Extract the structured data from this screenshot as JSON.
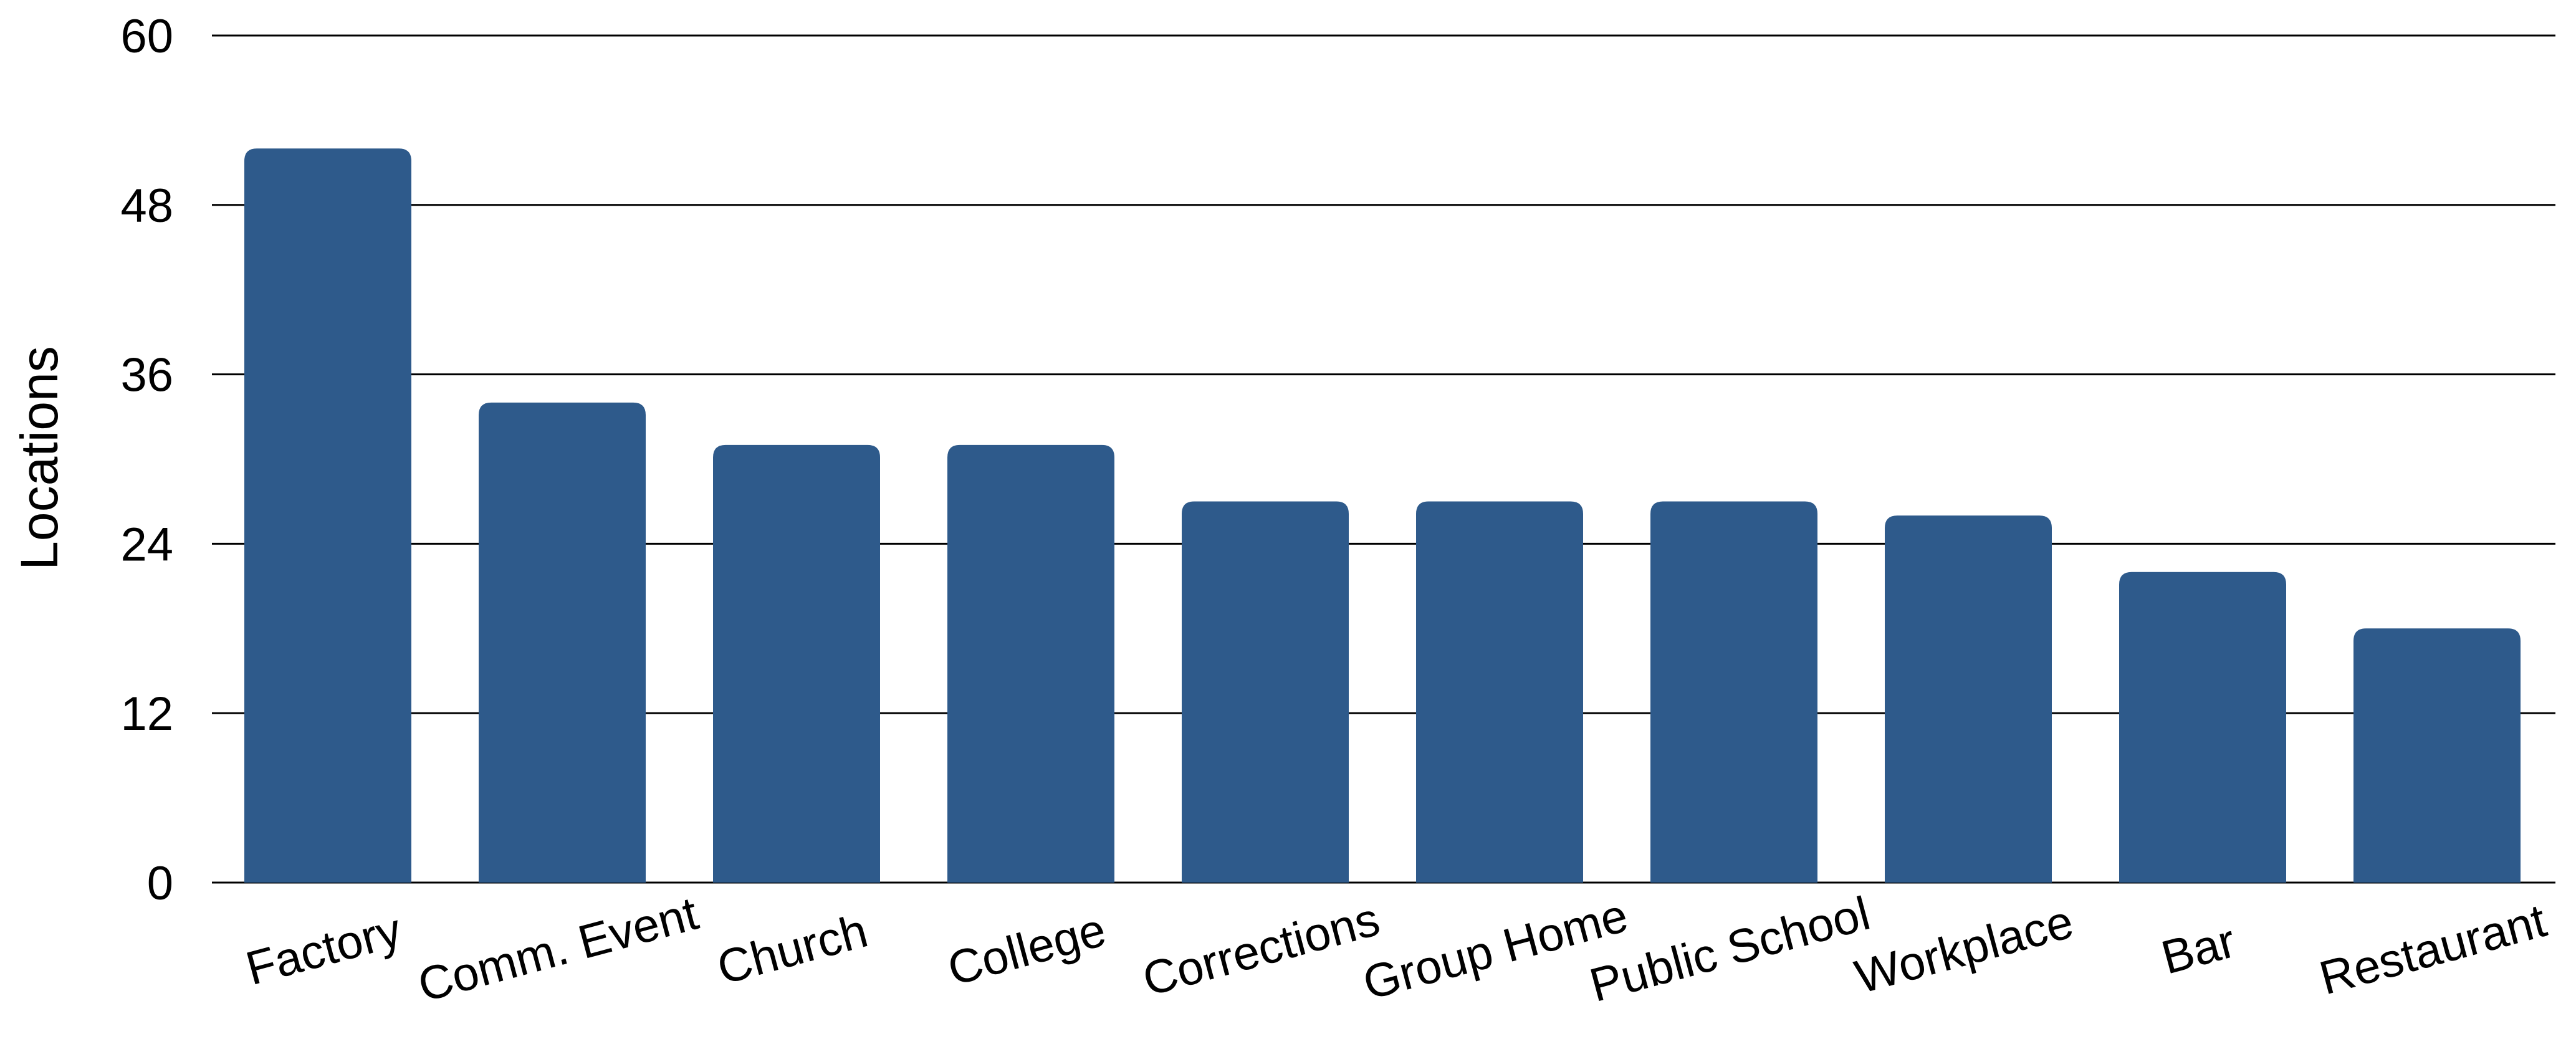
{
  "chart_data": {
    "type": "bar",
    "title": "",
    "xlabel": "",
    "ylabel": "Locations",
    "ylim": [
      0,
      60
    ],
    "yticks": [
      0,
      12,
      24,
      36,
      48,
      60
    ],
    "grid": true,
    "legend": "none",
    "bar_color": "#2e5a8b",
    "categories": [
      "Factory",
      "Comm. Event",
      "Church",
      "College",
      "Corrections",
      "Group Home",
      "Public School",
      "Workplace",
      "Bar",
      "Restaurant"
    ],
    "values": [
      52,
      34,
      31,
      31,
      27,
      27,
      27,
      26,
      22,
      18
    ]
  }
}
